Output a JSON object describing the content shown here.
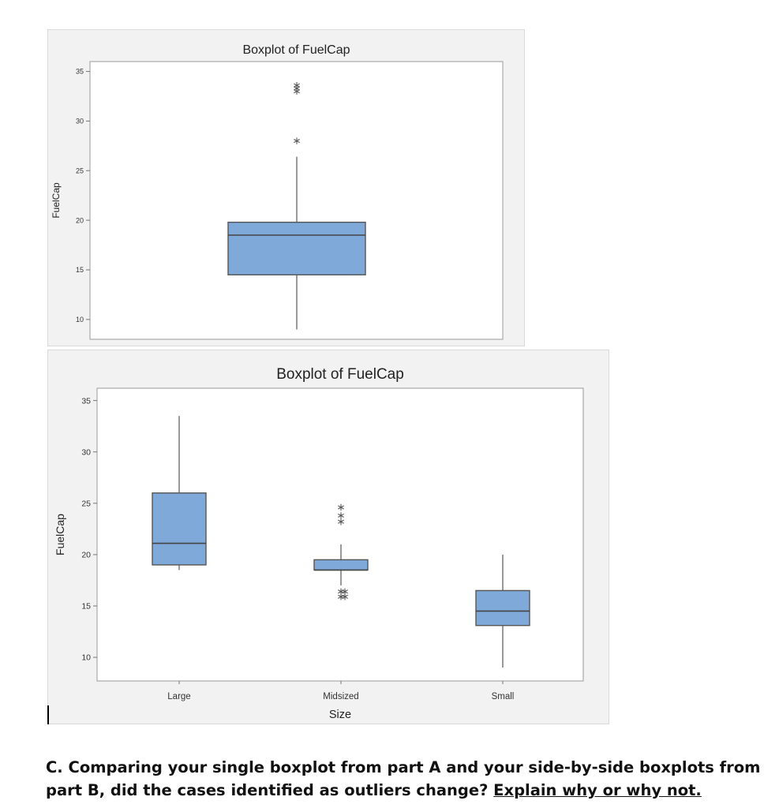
{
  "chart_data": [
    {
      "type": "boxplot",
      "title": "Boxplot of FuelCap",
      "xlabel": "",
      "ylabel": "FuelCap",
      "ylim": [
        8,
        36
      ],
      "yticks": [
        10,
        15,
        20,
        25,
        30,
        35
      ],
      "grid": false,
      "boxes": [
        {
          "category": "",
          "min": 9,
          "q1": 14.5,
          "median": 18.5,
          "q3": 19.8,
          "max": 26.4,
          "outliers": [
            28,
            33,
            33.3,
            33.6
          ]
        }
      ],
      "box_color": "#7fa9d8"
    },
    {
      "type": "boxplot",
      "title": "Boxplot of FuelCap",
      "xlabel": "Size",
      "ylabel": "FuelCap",
      "ylim": [
        7.7,
        36.2
      ],
      "yticks": [
        10,
        15,
        20,
        25,
        30,
        35
      ],
      "categories": [
        "Large",
        "Midsized",
        "Small"
      ],
      "grid": false,
      "boxes": [
        {
          "category": "Large",
          "min": 18.5,
          "q1": 19,
          "median": 21.1,
          "q3": 26,
          "max": 33.5,
          "outliers": []
        },
        {
          "category": "Midsized",
          "min": 17,
          "q1": 18.5,
          "median": 18.5,
          "q3": 19.5,
          "max": 21,
          "outliers": [
            15.9,
            15.9,
            16.4,
            16.4,
            23.2,
            23.8,
            24.6
          ]
        },
        {
          "category": "Small",
          "min": 9,
          "q1": 13.1,
          "median": 14.5,
          "q3": 16.5,
          "max": 20,
          "outliers": []
        }
      ],
      "box_color": "#7fa9d8"
    }
  ],
  "question": {
    "prefix": "C. Comparing your single boxplot from part A and your side-by-side boxplots from part B, did the cases identified as outliers change? ",
    "underlined": "Explain why or why not."
  }
}
